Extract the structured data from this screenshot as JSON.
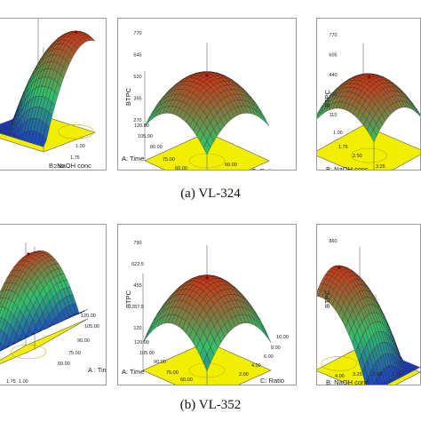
{
  "figure": {
    "captions": [
      "(a) VL-324",
      "(b) VL-352"
    ]
  },
  "colors": {
    "floor": "#f2ee00",
    "surface_low": "#1a2fd0",
    "surface_mid": "#33c06a",
    "surface_high": "#c83a1a"
  },
  "chart_data": [
    {
      "type": "surface3d",
      "group": "VL-324",
      "xlabel": "",
      "ylabel": "B: NaOH conc",
      "zlabel": "",
      "x_ticks": [],
      "y_ticks": [
        "1.00",
        "1.75",
        "2.50",
        "3.25",
        "4.00"
      ],
      "z_ticks": [],
      "grid": true
    },
    {
      "type": "surface3d",
      "group": "VL-324",
      "xlabel": "A: Time",
      "ylabel": "C: Ratio",
      "zlabel": "BTPC",
      "x_ticks": [
        "120.00",
        "105.00",
        "90.00",
        "75.00",
        "60.00"
      ],
      "y_ticks": [
        "60.00"
      ],
      "z_ticks": [
        "770",
        "645",
        "520",
        "395",
        "270"
      ],
      "grid": true
    },
    {
      "type": "surface3d",
      "group": "VL-324",
      "xlabel": "B: NaOH conc",
      "ylabel": "",
      "zlabel": "BTPC",
      "x_ticks": [
        "1.00",
        "1.75",
        "2.50",
        "3.25"
      ],
      "y_ticks": [],
      "z_ticks": [
        "770",
        "605",
        "440",
        "275",
        "110"
      ],
      "grid": true
    },
    {
      "type": "surface3d",
      "group": "VL-352",
      "xlabel": "A : Time",
      "ylabel": "",
      "zlabel": "",
      "x_ticks": [
        "120.00",
        "105.00",
        "90.00",
        "75.00",
        "60.00"
      ],
      "y_ticks": [
        "1.00",
        "1.75"
      ],
      "z_ticks": [],
      "grid": true
    },
    {
      "type": "surface3d",
      "group": "VL-352",
      "xlabel": "A: Time",
      "ylabel": "C: Ratio",
      "zlabel": "BTPC",
      "x_ticks": [
        "120.00",
        "105.00",
        "90.00",
        "75.00",
        "60.00"
      ],
      "y_ticks": [
        "10.00",
        "8.00",
        "6.00",
        "4.00",
        "2.00"
      ],
      "z_ticks": [
        "790",
        "622.5",
        "455",
        "287.5",
        "120"
      ],
      "grid": true
    },
    {
      "type": "surface3d",
      "group": "VL-352",
      "xlabel": "B: NaOH conc",
      "ylabel": "",
      "zlabel": "BTPC",
      "x_ticks": [
        "4.00",
        "3.25",
        "2.50",
        "1.75"
      ],
      "y_ticks": [],
      "z_ticks": [
        "860",
        "",
        "",
        "",
        ""
      ],
      "grid": true
    }
  ]
}
